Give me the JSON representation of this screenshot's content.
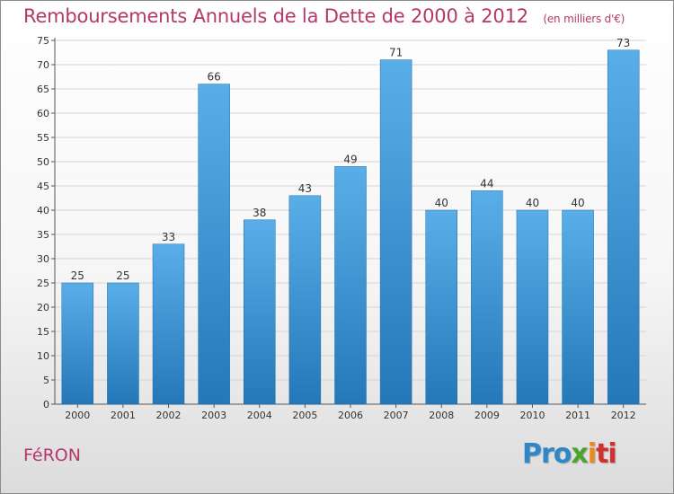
{
  "header": {
    "title": "Remboursements Annuels de la Dette de 2000 à 2012",
    "subtitle": "(en milliers d'€)"
  },
  "footer": {
    "commune": "FéRON",
    "logo_parts": [
      "Pro",
      "x",
      "i",
      "ti"
    ]
  },
  "colors": {
    "title": "#b4386a",
    "bar_light": "#5aaee8",
    "bar_dark": "#2478b8",
    "grid": "#d4d4d4"
  },
  "chart_data": {
    "type": "bar",
    "title": "Remboursements Annuels de la Dette de 2000 à 2012",
    "subtitle": "(en milliers d'€)",
    "categories": [
      "2000",
      "2001",
      "2002",
      "2003",
      "2004",
      "2005",
      "2006",
      "2007",
      "2008",
      "2009",
      "2010",
      "2011",
      "2012"
    ],
    "values": [
      25,
      25,
      33,
      66,
      38,
      43,
      49,
      71,
      40,
      44,
      40,
      40,
      73
    ],
    "ylim": [
      0,
      75
    ],
    "ytick_step": 5,
    "grid": true,
    "data_labels": true
  }
}
